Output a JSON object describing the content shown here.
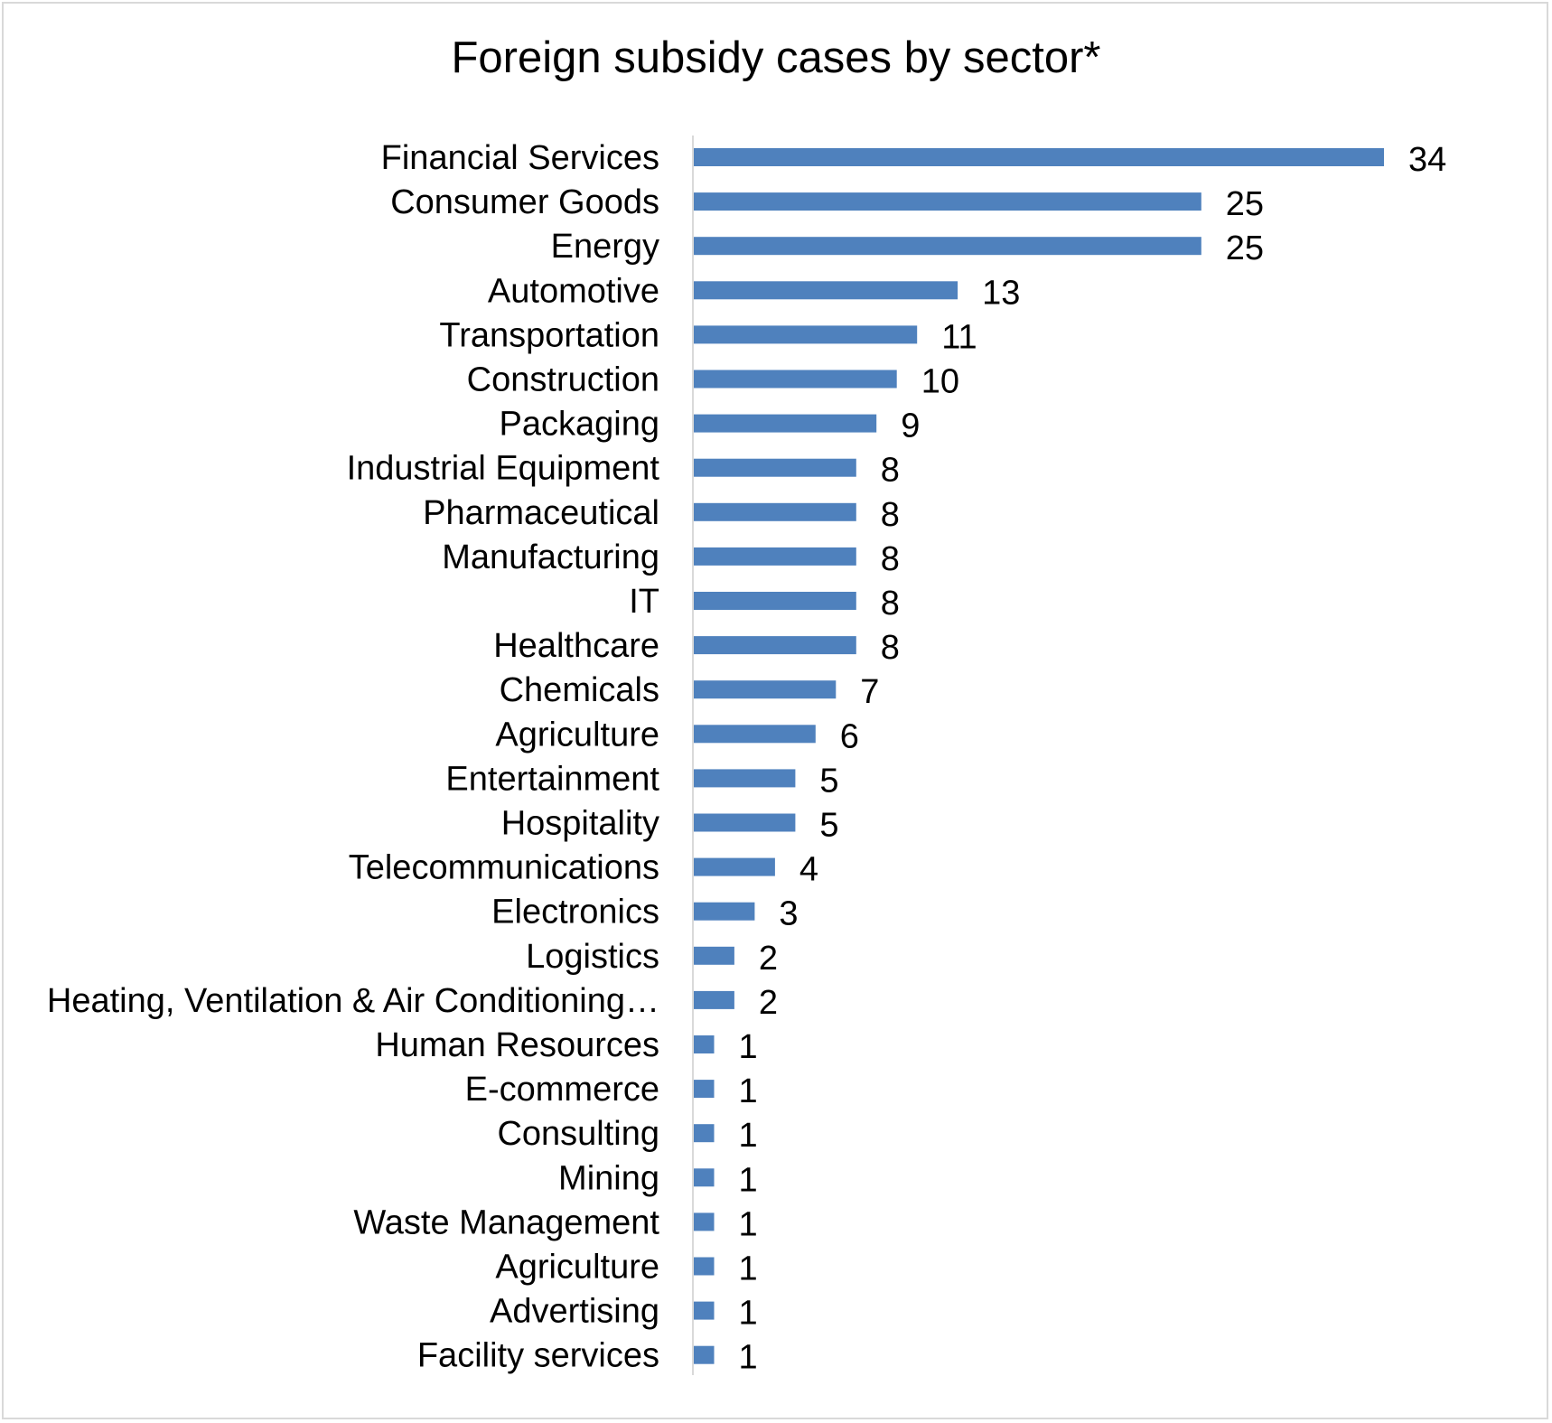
{
  "chart_data": {
    "type": "bar",
    "orientation": "horizontal",
    "title": "Foreign subsidy cases by sector*",
    "xlabel": "",
    "ylabel": "",
    "xlim": [
      0,
      34
    ],
    "grid": false,
    "legend": "none",
    "bar_color": "#4f81bd",
    "axis_color": "#d9d9d9",
    "categories": [
      "Financial Services",
      "Consumer Goods",
      "Energy",
      "Automotive",
      "Transportation",
      "Construction",
      "Packaging",
      "Industrial Equipment",
      "Pharmaceutical",
      "Manufacturing",
      "IT",
      "Healthcare",
      "Chemicals",
      "Agriculture",
      "Entertainment",
      "Hospitality",
      "Telecommunications",
      "Electronics",
      "Logistics",
      "Heating, Ventilation & Air Conditioning…",
      "Human Resources",
      "E-commerce",
      "Consulting",
      "Mining",
      "Waste Management",
      "Agriculture ",
      "Advertising",
      "Facility services"
    ],
    "values": [
      34,
      25,
      25,
      13,
      11,
      10,
      9,
      8,
      8,
      8,
      8,
      8,
      7,
      6,
      5,
      5,
      4,
      3,
      2,
      2,
      1,
      1,
      1,
      1,
      1,
      1,
      1,
      1
    ]
  }
}
